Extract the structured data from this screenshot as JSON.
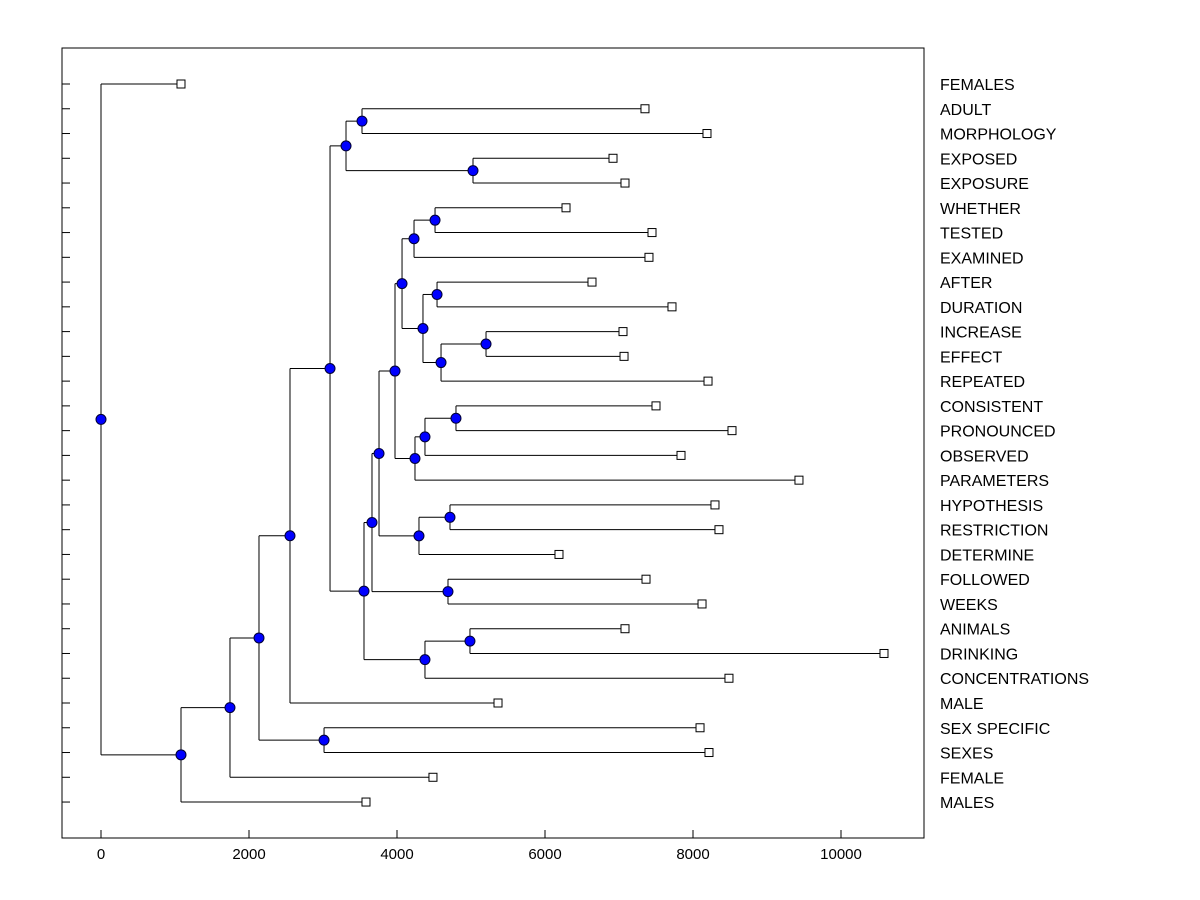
{
  "chart_data": {
    "type": "dendrogram",
    "orientation": "horizontal",
    "title": "",
    "xlabel": "",
    "ylabel": "",
    "xlim": [
      -500,
      11200
    ],
    "xticks": [
      0,
      2000,
      4000,
      6000,
      8000,
      10000
    ],
    "xtick_labels": [
      "0",
      "2000",
      "4000",
      "6000",
      "8000",
      "10000"
    ],
    "grid": false,
    "colors": {
      "node": "#0000ff",
      "node_outline": "#000033",
      "leaf": "#ffffff",
      "line": "#000000"
    },
    "tree": {
      "h": 0,
      "c": [
        {
          "label": "FEMALES",
          "value": 1081
        },
        {
          "h": 1081,
          "c": [
            {
              "h": 1743,
              "c": [
                {
                  "h": 2135,
                  "c": [
                    {
                      "h": 2554,
                      "c": [
                        {
                          "h": 3095,
                          "c": [
                            {
                              "h": 3311,
                              "c": [
                                {
                                  "h": 3527,
                                  "c": [
                                    {
                                      "label": "ADULT",
                                      "value": 7351
                                    },
                                    {
                                      "label": "MORPHOLOGY",
                                      "value": 8189
                                    }
                                  ]
                                },
                                {
                                  "h": 5027,
                                  "c": [
                                    {
                                      "label": "EXPOSED",
                                      "value": 6919
                                    },
                                    {
                                      "label": "EXPOSURE",
                                      "value": 7081
                                    }
                                  ]
                                }
                              ]
                            },
                            {
                              "h": 3554,
                              "c": [
                                {
                                  "h": 3662,
                                  "c": [
                                    {
                                      "h": 3757,
                                      "c": [
                                        {
                                          "h": 3973,
                                          "c": [
                                            {
                                              "h": 4068,
                                              "c": [
                                                {
                                                  "h": 4230,
                                                  "c": [
                                                    {
                                                      "h": 4514,
                                                      "c": [
                                                        {
                                                          "label": "WHETHER",
                                                          "value": 6284
                                                        },
                                                        {
                                                          "label": "TESTED",
                                                          "value": 7446
                                                        }
                                                      ]
                                                    },
                                                    {
                                                      "label": "EXAMINED",
                                                      "value": 7405
                                                    }
                                                  ]
                                                },
                                                {
                                                  "h": 4351,
                                                  "c": [
                                                    {
                                                      "h": 4541,
                                                      "c": [
                                                        {
                                                          "label": "AFTER",
                                                          "value": 6635
                                                        },
                                                        {
                                                          "label": "DURATION",
                                                          "value": 7716
                                                        }
                                                      ]
                                                    },
                                                    {
                                                      "h": 4595,
                                                      "c": [
                                                        {
                                                          "h": 5203,
                                                          "c": [
                                                            {
                                                              "label": "INCREASE",
                                                              "value": 7054
                                                            },
                                                            {
                                                              "label": "EFFECT",
                                                              "value": 7068
                                                            }
                                                          ]
                                                        },
                                                        {
                                                          "label": "REPEATED",
                                                          "value": 8203
                                                        }
                                                      ]
                                                    }
                                                  ]
                                                }
                                              ]
                                            },
                                            {
                                              "h": 4243,
                                              "c": [
                                                {
                                                  "h": 4378,
                                                  "c": [
                                                    {
                                                      "h": 4797,
                                                      "c": [
                                                        {
                                                          "label": "CONSISTENT",
                                                          "value": 7500
                                                        },
                                                        {
                                                          "label": "PRONOUNCED",
                                                          "value": 8527
                                                        }
                                                      ]
                                                    },
                                                    {
                                                      "label": "OBSERVED",
                                                      "value": 7838
                                                    }
                                                  ]
                                                },
                                                {
                                                  "label": "PARAMETERS",
                                                  "value": 9432
                                                }
                                              ]
                                            }
                                          ]
                                        },
                                        {
                                          "h": 4297,
                                          "c": [
                                            {
                                              "h": 4716,
                                              "c": [
                                                {
                                                  "label": "HYPOTHESIS",
                                                  "value": 8297
                                                },
                                                {
                                                  "label": "RESTRICTION",
                                                  "value": 8351
                                                }
                                              ]
                                            },
                                            {
                                              "label": "DETERMINE",
                                              "value": 6189
                                            }
                                          ]
                                        }
                                      ]
                                    },
                                    {
                                      "h": 4689,
                                      "c": [
                                        {
                                          "label": "FOLLOWED",
                                          "value": 7365
                                        },
                                        {
                                          "label": "WEEKS",
                                          "value": 8122
                                        }
                                      ]
                                    }
                                  ]
                                },
                                {
                                  "h": 4378,
                                  "c": [
                                    {
                                      "h": 4986,
                                      "c": [
                                        {
                                          "label": "ANIMALS",
                                          "value": 7081
                                        },
                                        {
                                          "label": "DRINKING",
                                          "value": 10581
                                        }
                                      ]
                                    },
                                    {
                                      "label": "CONCENTRATIONS",
                                      "value": 8486
                                    }
                                  ]
                                }
                              ]
                            }
                          ]
                        },
                        {
                          "label": "MALE",
                          "value": 5365
                        }
                      ]
                    },
                    {
                      "h": 3014,
                      "c": [
                        {
                          "label": "SEX SPECIFIC",
                          "value": 8095
                        },
                        {
                          "label": "SEXES",
                          "value": 8216
                        }
                      ]
                    }
                  ]
                },
                {
                  "label": "FEMALE",
                  "value": 4486
                }
              ]
            },
            {
              "label": "MALES",
              "value": 3581
            }
          ]
        }
      ]
    }
  }
}
